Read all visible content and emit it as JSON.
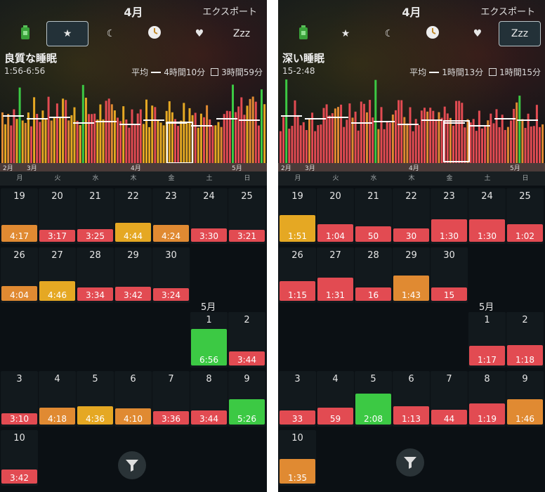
{
  "colors": {
    "green": "#3cc944",
    "yellow": "#e5a823",
    "orange": "#e08a32",
    "red": "#e24b52",
    "bg": "#0b1014"
  },
  "weekdays": [
    "月",
    "火",
    "水",
    "木",
    "金",
    "土",
    "日"
  ],
  "panels": [
    {
      "header": {
        "title": "4月",
        "export": "エクスポート"
      },
      "tabs": [
        {
          "name": "battery",
          "icon": "battery-icon",
          "label": "",
          "active": false
        },
        {
          "name": "star",
          "icon": "star-icon",
          "label": "★",
          "active": true
        },
        {
          "name": "moon",
          "icon": "moon-icon",
          "label": "☾",
          "active": false
        },
        {
          "name": "clock",
          "icon": "clock-icon",
          "label": "",
          "active": false
        },
        {
          "name": "heart",
          "icon": "heart-icon",
          "label": "♥",
          "active": false
        },
        {
          "name": "zzz",
          "icon": "zzz-icon",
          "label": "Zzz",
          "active": false
        }
      ],
      "metric": {
        "title": "良質な睡眠",
        "range": "1:56-6:56",
        "avg_label": "平均",
        "avg_value": "4時間10分",
        "alt_value": "3時間59分"
      },
      "axis": {
        "months": [
          "2月",
          "3月",
          "4月",
          "5月"
        ]
      },
      "calendar": {
        "may_label": "5月",
        "days": [
          {
            "d": "19",
            "v": "4:17",
            "c": "orange"
          },
          {
            "d": "20",
            "v": "3:17",
            "c": "red"
          },
          {
            "d": "21",
            "v": "3:25",
            "c": "red"
          },
          {
            "d": "22",
            "v": "4:44",
            "c": "yellow"
          },
          {
            "d": "23",
            "v": "4:24",
            "c": "orange"
          },
          {
            "d": "24",
            "v": "3:30",
            "c": "red"
          },
          {
            "d": "25",
            "v": "3:21",
            "c": "red"
          },
          {
            "d": "26",
            "v": "4:04",
            "c": "orange"
          },
          {
            "d": "27",
            "v": "4:46",
            "c": "yellow"
          },
          {
            "d": "28",
            "v": "3:34",
            "c": "red"
          },
          {
            "d": "29",
            "v": "3:42",
            "c": "red"
          },
          {
            "d": "30",
            "v": "3:24",
            "c": "red"
          },
          {
            "d": "1",
            "v": "6:56",
            "c": "green"
          },
          {
            "d": "2",
            "v": "3:44",
            "c": "red"
          },
          {
            "d": "3",
            "v": "3:10",
            "c": "red"
          },
          {
            "d": "4",
            "v": "4:18",
            "c": "orange"
          },
          {
            "d": "5",
            "v": "4:36",
            "c": "yellow"
          },
          {
            "d": "6",
            "v": "4:10",
            "c": "orange"
          },
          {
            "d": "7",
            "v": "3:36",
            "c": "red"
          },
          {
            "d": "8",
            "v": "3:44",
            "c": "red"
          },
          {
            "d": "9",
            "v": "5:26",
            "c": "green"
          },
          {
            "d": "10",
            "v": "3:42",
            "c": "red"
          }
        ],
        "bar_level": [
          0.3,
          0.22,
          0.23,
          0.34,
          0.3,
          0.24,
          0.22,
          0.27,
          0.35,
          0.24,
          0.25,
          0.23,
          0.66,
          0.25,
          0.2,
          0.3,
          0.33,
          0.29,
          0.24,
          0.25,
          0.45,
          0.25
        ]
      }
    },
    {
      "header": {
        "title": "4月",
        "export": "エクスポート"
      },
      "tabs": [
        {
          "name": "battery",
          "icon": "battery-icon",
          "label": "",
          "active": false
        },
        {
          "name": "star",
          "icon": "star-icon",
          "label": "★",
          "active": false
        },
        {
          "name": "moon",
          "icon": "moon-icon",
          "label": "☾",
          "active": false
        },
        {
          "name": "clock",
          "icon": "clock-icon",
          "label": "",
          "active": false
        },
        {
          "name": "heart",
          "icon": "heart-icon",
          "label": "♥",
          "active": false
        },
        {
          "name": "zzz",
          "icon": "zzz-icon",
          "label": "Zzz",
          "active": true
        }
      ],
      "metric": {
        "title": "深い睡眠",
        "range": "15-2:48",
        "avg_label": "平均",
        "avg_value": "1時間13分",
        "alt_value": "1時間15分"
      },
      "axis": {
        "months": [
          "2月",
          "3月",
          "4月",
          "5月"
        ]
      },
      "calendar": {
        "may_label": "5月",
        "days": [
          {
            "d": "19",
            "v": "1:51",
            "c": "yellow"
          },
          {
            "d": "20",
            "v": "1:04",
            "c": "red"
          },
          {
            "d": "21",
            "v": "50",
            "c": "red"
          },
          {
            "d": "22",
            "v": "30",
            "c": "red"
          },
          {
            "d": "23",
            "v": "1:30",
            "c": "red"
          },
          {
            "d": "24",
            "v": "1:30",
            "c": "red"
          },
          {
            "d": "25",
            "v": "1:02",
            "c": "red"
          },
          {
            "d": "26",
            "v": "1:15",
            "c": "red"
          },
          {
            "d": "27",
            "v": "1:31",
            "c": "red"
          },
          {
            "d": "28",
            "v": "16",
            "c": "red"
          },
          {
            "d": "29",
            "v": "1:43",
            "c": "orange"
          },
          {
            "d": "30",
            "v": "15",
            "c": "red"
          },
          {
            "d": "1",
            "v": "1:17",
            "c": "red"
          },
          {
            "d": "2",
            "v": "1:18",
            "c": "red"
          },
          {
            "d": "3",
            "v": "33",
            "c": "red"
          },
          {
            "d": "4",
            "v": "59",
            "c": "red"
          },
          {
            "d": "5",
            "v": "2:08",
            "c": "green"
          },
          {
            "d": "6",
            "v": "1:13",
            "c": "red"
          },
          {
            "d": "7",
            "v": "44",
            "c": "red"
          },
          {
            "d": "8",
            "v": "1:19",
            "c": "red"
          },
          {
            "d": "9",
            "v": "1:46",
            "c": "orange"
          },
          {
            "d": "10",
            "v": "1:35",
            "c": "orange"
          }
        ],
        "bar_level": [
          0.48,
          0.32,
          0.28,
          0.24,
          0.4,
          0.4,
          0.32,
          0.36,
          0.42,
          0.24,
          0.46,
          0.24,
          0.36,
          0.37,
          0.25,
          0.31,
          0.56,
          0.33,
          0.27,
          0.38,
          0.46,
          0.44
        ]
      }
    }
  ]
}
